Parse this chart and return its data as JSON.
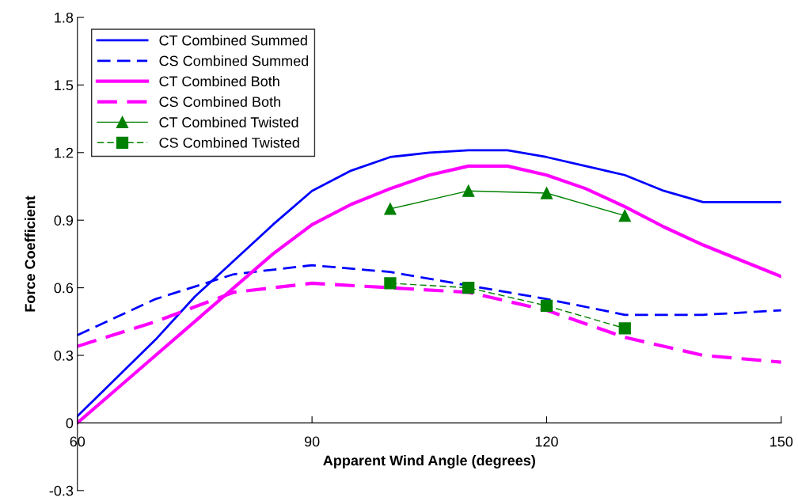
{
  "chart_data": {
    "type": "line",
    "xlabel": "Apparent Wind Angle (degrees)",
    "ylabel": "Force Coefficient",
    "xlim": [
      60,
      150
    ],
    "xticks": [
      60,
      90,
      120,
      150
    ],
    "ylim": [
      -0.3,
      1.8
    ],
    "yticks": [
      -0.3,
      0,
      0.3,
      0.6,
      0.9,
      1.2,
      1.5,
      1.8
    ],
    "grid": false,
    "legend": "top left",
    "series": [
      {
        "name": "CT Combined Summed",
        "color": "#0000ff",
        "line_style": "solid",
        "marker": "none",
        "x": [
          60,
          65,
          70,
          75,
          80,
          85,
          90,
          95,
          100,
          105,
          110,
          115,
          120,
          125,
          130,
          135,
          140,
          145,
          150
        ],
        "values": [
          0.03,
          0.2,
          0.37,
          0.56,
          0.72,
          0.88,
          1.03,
          1.12,
          1.18,
          1.2,
          1.21,
          1.21,
          1.18,
          1.14,
          1.1,
          1.03,
          0.98,
          0.98,
          0.98
        ]
      },
      {
        "name": "CS Combined Summed",
        "color": "#0000ff",
        "line_style": "dashed",
        "marker": "none",
        "x": [
          60,
          70,
          80,
          90,
          100,
          110,
          120,
          130,
          140,
          150
        ],
        "values": [
          0.39,
          0.55,
          0.66,
          0.7,
          0.67,
          0.61,
          0.55,
          0.48,
          0.48,
          0.5
        ]
      },
      {
        "name": "CT Combined Both",
        "color": "#ff00ff",
        "line_style": "solid",
        "marker": "none",
        "x": [
          60,
          65,
          70,
          75,
          80,
          85,
          90,
          95,
          100,
          105,
          110,
          115,
          120,
          125,
          130,
          135,
          140,
          145,
          150
        ],
        "values": [
          0.0,
          0.15,
          0.3,
          0.45,
          0.6,
          0.75,
          0.88,
          0.97,
          1.04,
          1.1,
          1.14,
          1.14,
          1.1,
          1.04,
          0.96,
          0.87,
          0.79,
          0.72,
          0.65
        ]
      },
      {
        "name": "CS Combined Both",
        "color": "#ff00ff",
        "line_style": "dashed",
        "marker": "none",
        "x": [
          60,
          70,
          80,
          90,
          100,
          110,
          120,
          130,
          140,
          150
        ],
        "values": [
          0.34,
          0.45,
          0.58,
          0.62,
          0.6,
          0.58,
          0.5,
          0.38,
          0.3,
          0.27
        ]
      },
      {
        "name": "CT Combined Twisted",
        "color": "#008000",
        "line_style": "solid",
        "marker": "triangle",
        "x": [
          100,
          110,
          120,
          130
        ],
        "values": [
          0.95,
          1.03,
          1.02,
          0.92
        ]
      },
      {
        "name": "CS Combined Twisted",
        "color": "#008000",
        "line_style": "dashed",
        "marker": "square",
        "x": [
          100,
          110,
          120,
          130
        ],
        "values": [
          0.62,
          0.6,
          0.52,
          0.42
        ]
      }
    ]
  }
}
